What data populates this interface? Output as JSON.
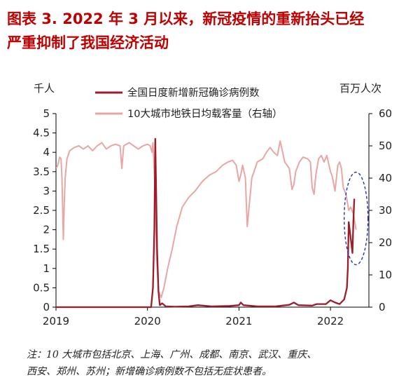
{
  "figure": {
    "title_line1": "图表 3.  2022 年 3 月以来，新冠疫情的重新抬头已经",
    "title_line2": "严重抑制了我国经济活动",
    "note_line1": "注：10 大城市包括北京、上海、广州、成都、南京、武汉、重庆、",
    "note_line2": "西安、郑州、苏州；新增确诊病例数不包括无症状患者。"
  },
  "chart_data": {
    "type": "line",
    "left_unit": "千人",
    "right_unit": "百万人次",
    "y_left_range": [
      0,
      5
    ],
    "y_left_ticks": [
      "0",
      "0.5",
      "1",
      "1.5",
      "2",
      "2.5",
      "3",
      "3.5",
      "4",
      "4.5",
      "5"
    ],
    "y_right_range": [
      0,
      60
    ],
    "y_right_ticks": [
      "0",
      "10",
      "20",
      "30",
      "40",
      "50",
      "60"
    ],
    "x_range": [
      2019.0,
      2022.42
    ],
    "x_ticks": [
      "2019",
      "2020",
      "2021",
      "2022"
    ],
    "legend_position": "top",
    "grid": false,
    "highlight_ellipse": {
      "x_center": 2022.28,
      "y_right_center": 27.5,
      "color": "#2030d0",
      "style": "dashed"
    },
    "series": [
      {
        "name": "全国日度新增新冠确诊病例数",
        "axis": "left",
        "color": "#9e1b2a",
        "points": [
          [
            2019.0,
            0.0
          ],
          [
            2020.04,
            0.0
          ],
          [
            2020.06,
            0.5
          ],
          [
            2020.075,
            2.0
          ],
          [
            2020.085,
            4.35
          ],
          [
            2020.095,
            3.0
          ],
          [
            2020.105,
            1.5
          ],
          [
            2020.12,
            0.4
          ],
          [
            2020.135,
            0.05
          ],
          [
            2020.16,
            0.1
          ],
          [
            2020.2,
            0.02
          ],
          [
            2020.3,
            0.01
          ],
          [
            2020.45,
            0.02
          ],
          [
            2020.55,
            0.05
          ],
          [
            2020.7,
            0.02
          ],
          [
            2020.9,
            0.03
          ],
          [
            2021.0,
            0.05
          ],
          [
            2021.02,
            0.12
          ],
          [
            2021.05,
            0.05
          ],
          [
            2021.2,
            0.02
          ],
          [
            2021.4,
            0.02
          ],
          [
            2021.55,
            0.06
          ],
          [
            2021.6,
            0.12
          ],
          [
            2021.65,
            0.05
          ],
          [
            2021.8,
            0.04
          ],
          [
            2021.85,
            0.08
          ],
          [
            2021.95,
            0.08
          ],
          [
            2022.0,
            0.18
          ],
          [
            2022.05,
            0.12
          ],
          [
            2022.1,
            0.08
          ],
          [
            2022.15,
            0.2
          ],
          [
            2022.18,
            0.5
          ],
          [
            2022.19,
            1.0
          ],
          [
            2022.2,
            2.2
          ],
          [
            2022.22,
            1.8
          ],
          [
            2022.24,
            1.4
          ],
          [
            2022.25,
            2.2
          ],
          [
            2022.26,
            2.8
          ]
        ]
      },
      {
        "name": "10大城市地铁日均载客量（右轴）",
        "axis": "right",
        "color": "#e8a7a4",
        "points": [
          [
            2019.0,
            43.0
          ],
          [
            2019.02,
            44.0
          ],
          [
            2019.04,
            46.5
          ],
          [
            2019.055,
            46.0
          ],
          [
            2019.065,
            40.0
          ],
          [
            2019.08,
            21.0
          ],
          [
            2019.09,
            32.0
          ],
          [
            2019.1,
            40.0
          ],
          [
            2019.12,
            46.0
          ],
          [
            2019.15,
            48.5
          ],
          [
            2019.2,
            49.5
          ],
          [
            2019.25,
            50.0
          ],
          [
            2019.3,
            49.0
          ],
          [
            2019.35,
            50.0
          ],
          [
            2019.4,
            48.5
          ],
          [
            2019.45,
            50.0
          ],
          [
            2019.5,
            51.0
          ],
          [
            2019.55,
            49.0
          ],
          [
            2019.6,
            50.0
          ],
          [
            2019.65,
            50.5
          ],
          [
            2019.7,
            50.0
          ],
          [
            2019.72,
            43.0
          ],
          [
            2019.74,
            50.0
          ],
          [
            2019.8,
            51.0
          ],
          [
            2019.85,
            50.0
          ],
          [
            2019.9,
            49.0
          ],
          [
            2019.95,
            50.0
          ],
          [
            2020.0,
            50.5
          ],
          [
            2020.03,
            50.0
          ],
          [
            2020.05,
            48.0
          ],
          [
            2020.06,
            51.0
          ],
          [
            2020.08,
            38.0
          ],
          [
            2020.1,
            15.0
          ],
          [
            2020.12,
            5.0
          ],
          [
            2020.15,
            3.0
          ],
          [
            2020.18,
            6.0
          ],
          [
            2020.22,
            12.0
          ],
          [
            2020.27,
            18.0
          ],
          [
            2020.32,
            25.0
          ],
          [
            2020.38,
            31.0
          ],
          [
            2020.45,
            34.0
          ],
          [
            2020.52,
            36.0
          ],
          [
            2020.6,
            39.0
          ],
          [
            2020.68,
            41.0
          ],
          [
            2020.75,
            42.0
          ],
          [
            2020.82,
            44.0
          ],
          [
            2020.88,
            45.0
          ],
          [
            2020.93,
            45.5
          ],
          [
            2020.97,
            44.0
          ],
          [
            2021.0,
            39.0
          ],
          [
            2021.02,
            41.0
          ],
          [
            2021.04,
            44.0
          ],
          [
            2021.07,
            40.0
          ],
          [
            2021.09,
            25.0
          ],
          [
            2021.11,
            31.0
          ],
          [
            2021.14,
            40.0
          ],
          [
            2021.2,
            45.0
          ],
          [
            2021.26,
            46.0
          ],
          [
            2021.3,
            48.0
          ],
          [
            2021.34,
            49.5
          ],
          [
            2021.38,
            48.0
          ],
          [
            2021.42,
            47.0
          ],
          [
            2021.45,
            51.5
          ],
          [
            2021.5,
            45.0
          ],
          [
            2021.55,
            43.0
          ],
          [
            2021.58,
            36.5
          ],
          [
            2021.6,
            38.0
          ],
          [
            2021.62,
            42.0
          ],
          [
            2021.66,
            45.0
          ],
          [
            2021.7,
            46.5
          ],
          [
            2021.75,
            46.0
          ],
          [
            2021.78,
            45.0
          ],
          [
            2021.8,
            37.0
          ],
          [
            2021.82,
            35.0
          ],
          [
            2021.84,
            41.0
          ],
          [
            2021.87,
            46.0
          ],
          [
            2021.9,
            47.0
          ],
          [
            2021.93,
            45.0
          ],
          [
            2021.96,
            47.0
          ],
          [
            2022.0,
            42.0
          ],
          [
            2022.02,
            40.5
          ],
          [
            2022.05,
            36.0
          ],
          [
            2022.08,
            44.0
          ],
          [
            2022.1,
            45.0
          ],
          [
            2022.12,
            43.0
          ],
          [
            2022.14,
            37.0
          ],
          [
            2022.17,
            35.0
          ],
          [
            2022.2,
            30.0
          ],
          [
            2022.22,
            31.0
          ],
          [
            2022.25,
            29.0
          ],
          [
            2022.28,
            24.0
          ]
        ]
      }
    ]
  }
}
